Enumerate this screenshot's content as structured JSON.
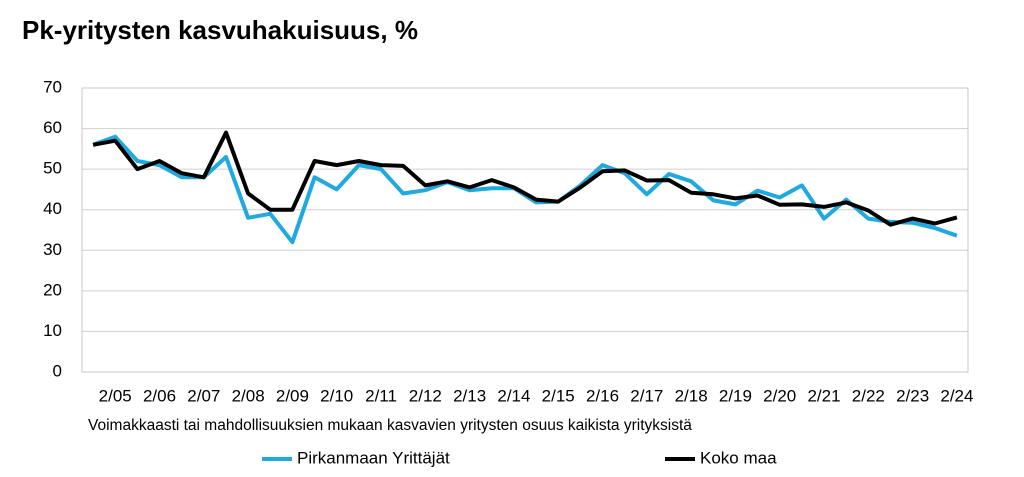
{
  "chart_data": {
    "type": "line",
    "title": "Pk-yritysten kasvuhakuisuus, %",
    "xlabel": "Voimakkaasti tai mahdollisuuksien mukaan kasvavien yritysten osuus kaikista yrityksistä",
    "categories": [
      null,
      "2/05",
      null,
      "2/06",
      null,
      "2/07",
      null,
      "2/08",
      null,
      "2/09",
      null,
      "2/10",
      null,
      "2/11",
      null,
      "2/12",
      null,
      "2/13",
      null,
      "2/14",
      null,
      "2/15",
      null,
      "2/16",
      null,
      "2/17",
      null,
      "2/18",
      null,
      "2/19",
      null,
      "2/20",
      null,
      "2/21",
      null,
      "2/22",
      null,
      "2/23",
      null,
      "2/24"
    ],
    "series": [
      {
        "name": "Pirkanmaan Yrittäjät",
        "color": "#1fa9e1",
        "values": [
          56,
          58,
          52,
          51,
          48,
          48,
          53,
          38,
          39,
          32,
          48,
          45,
          51,
          50,
          44,
          44.8,
          46.8,
          44.8,
          45.3,
          45.3,
          41.8,
          42,
          46,
          51,
          49,
          43.8,
          48.8,
          47,
          42.3,
          41.3,
          44.7,
          43,
          46,
          37.8,
          42.5,
          37.8,
          37,
          36.8,
          35.5,
          33.6
        ]
      },
      {
        "name": "Koko maa",
        "color": "#000000",
        "values": [
          56,
          57,
          50,
          52,
          49,
          48,
          59,
          44,
          40,
          40,
          52,
          51,
          52,
          51,
          50.8,
          46,
          47,
          45.5,
          47.3,
          45.5,
          42.5,
          42,
          45.5,
          49.5,
          49.7,
          47.2,
          47.3,
          44.2,
          43.8,
          42.8,
          43.5,
          41.2,
          41.3,
          40.7,
          41.8,
          39.8,
          36.3,
          37.8,
          36.6,
          38.1
        ]
      }
    ],
    "ylim": [
      0,
      70
    ],
    "yticks": [
      0,
      10,
      20,
      30,
      40,
      50,
      60,
      70
    ],
    "grid": true,
    "legend": "bottom"
  }
}
